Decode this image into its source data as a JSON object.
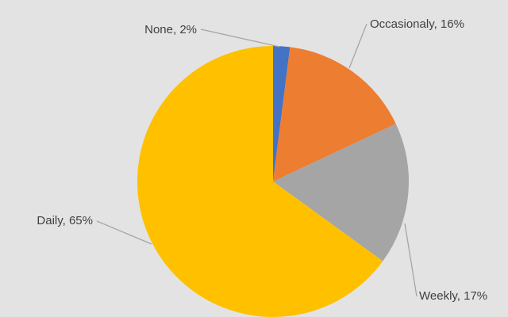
{
  "chart_data": {
    "type": "pie",
    "slices": [
      {
        "name": "None",
        "value": 2,
        "label": "None, 2%",
        "color": "#4472c4"
      },
      {
        "name": "Occasionaly",
        "value": 16,
        "label": "Occasionaly, 16%",
        "color": "#ed7d31"
      },
      {
        "name": "Weekly",
        "value": 17,
        "label": "Weekly, 17%",
        "color": "#a5a5a5"
      },
      {
        "name": "Daily",
        "value": 65,
        "label": "Daily, 65%",
        "color": "#ffc000"
      }
    ],
    "start_angle_degrees": 0,
    "direction": "clockwise",
    "legend": "none",
    "background_color": "#e3e3e3"
  }
}
